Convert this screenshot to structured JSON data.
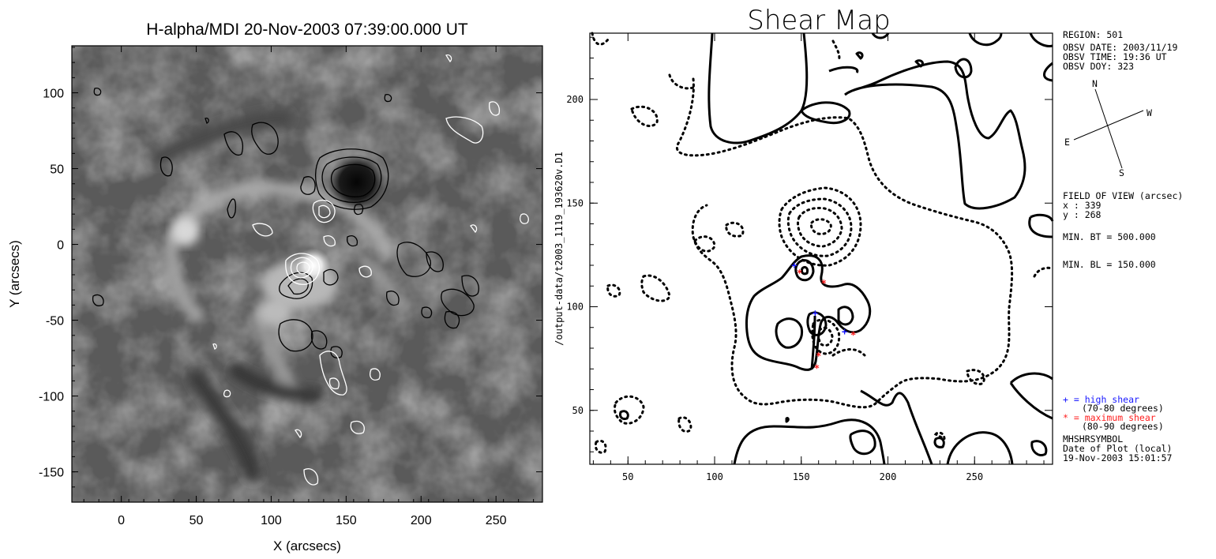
{
  "chart_data": [
    {
      "type": "heatmap",
      "title": "H-alpha/MDI 20-Nov-2003 07:39:00.000 UT",
      "xlabel": "X (arcsecs)",
      "ylabel": "Y (arcsecs)",
      "xlim": [
        -33,
        281
      ],
      "ylim": [
        -170,
        131
      ],
      "xticks": [
        "0",
        "50",
        "100",
        "150",
        "200",
        "250"
      ],
      "xtick_values": [
        0,
        50,
        100,
        150,
        200,
        250
      ],
      "yticks": [
        "100",
        "50",
        "0",
        "-50",
        "-100",
        "-150"
      ],
      "ytick_values": [
        100,
        50,
        0,
        -50,
        -100,
        -150
      ],
      "image": "H-alpha grayscale intensity with magnetic contours (black = negative, white = positive)",
      "dark_core": {
        "x": 157,
        "y": 41
      },
      "bright_core": {
        "x": 128,
        "y": -14
      }
    },
    {
      "type": "line",
      "title": "Shear Map",
      "ylabel": "/output-data/t2003_1119_193620v.D1",
      "xlim": [
        28,
        295
      ],
      "ylim": [
        24,
        232
      ],
      "xticks": [
        "50",
        "100",
        "150",
        "200",
        "250"
      ],
      "xtick_values": [
        50,
        100,
        150,
        200,
        250
      ],
      "yticks": [
        "200",
        "150",
        "100",
        "50"
      ],
      "ytick_values": [
        200,
        150,
        100,
        50
      ],
      "series": [
        {
          "style": "solid",
          "description": "contours"
        },
        {
          "style": "dotted",
          "description": "contours"
        }
      ],
      "high_shear_points": [
        {
          "x": 146,
          "y": 120
        },
        {
          "x": 158,
          "y": 97
        },
        {
          "x": 175,
          "y": 88
        }
      ],
      "max_shear_points": [
        {
          "x": 149,
          "y": 117
        },
        {
          "x": 163,
          "y": 112
        },
        {
          "x": 160,
          "y": 77
        },
        {
          "x": 159,
          "y": 71
        },
        {
          "x": 180,
          "y": 87
        }
      ]
    }
  ],
  "sidebar": {
    "region": "REGION:   501",
    "obsv_date": "OBSV DATE: 2003/11/19",
    "obsv_time": "OBSV TIME: 19:36 UT",
    "obsv_doy": "OBSV DOY: 323",
    "compass_n": "N",
    "compass_w": "W",
    "compass_e": "E",
    "compass_s": "S",
    "fov": "FIELD OF VIEW (arcsec)",
    "fov_x": "x :   339",
    "fov_y": "y :   268",
    "min_bt": "MIN. BT  =     500.000",
    "min_bl": "MIN. BL  =     150.000",
    "legend_high": "+ = high shear",
    "legend_high_range": "(70-80 degrees)",
    "legend_max": "* = maximum shear",
    "legend_max_range": "(80-90 degrees)",
    "symbol": "MHSHRSYMBOL",
    "date_of_plot": "Date of Plot (local)",
    "plot_time": "19-Nov-2003  15:01:57"
  },
  "colors": {
    "high_shear": "#1a1aff",
    "max_shear": "#ff2020",
    "frame": "#000000"
  }
}
